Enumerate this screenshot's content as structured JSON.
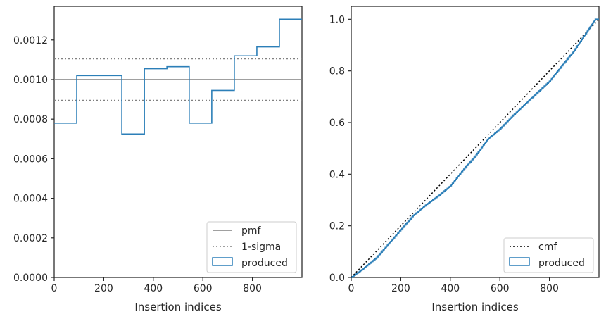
{
  "colors": {
    "produced": "#2c7fb8",
    "pmf": "#808080",
    "sigma": "#808080",
    "cmf": "#000000",
    "axis": "#262626"
  },
  "chart_data": [
    {
      "type": "line",
      "subtype": "step-histogram",
      "xlabel": "Insertion indices",
      "ylabel": "",
      "title": "",
      "xlim": [
        0,
        1000
      ],
      "ylim": [
        0,
        0.00137
      ],
      "xticks": [
        0,
        200,
        400,
        600,
        800
      ],
      "xtick_labels": [
        "0",
        "200",
        "400",
        "600",
        "800"
      ],
      "yticks": [
        0,
        0.0002,
        0.0004,
        0.0006,
        0.0008,
        0.001,
        0.0012
      ],
      "ytick_labels": [
        "0.0000",
        "0.0002",
        "0.0004",
        "0.0006",
        "0.0008",
        "0.0010",
        "0.0012"
      ],
      "grid": false,
      "legend_position": "bottom-right",
      "pmf": 0.001,
      "sigma_band": [
        0.000895,
        0.001105
      ],
      "bin_edges": [
        0,
        91,
        182,
        273,
        364,
        455,
        545,
        636,
        727,
        818,
        909,
        1000
      ],
      "produced": [
        0.00078,
        0.00102,
        0.00102,
        0.000725,
        0.001055,
        0.001065,
        0.00078,
        0.000945,
        0.00112,
        0.001165,
        0.001305
      ],
      "legend": [
        "pmf",
        "1-sigma",
        "produced"
      ]
    },
    {
      "type": "line",
      "xlabel": "Insertion indices",
      "ylabel": "",
      "title": "",
      "xlim": [
        0,
        1000
      ],
      "ylim": [
        0,
        1.05
      ],
      "xticks": [
        0,
        200,
        400,
        600,
        800
      ],
      "xtick_labels": [
        "0",
        "200",
        "400",
        "600",
        "800"
      ],
      "yticks": [
        0,
        0.2,
        0.4,
        0.6,
        0.8,
        1.0
      ],
      "ytick_labels": [
        "0.0",
        "0.2",
        "0.4",
        "0.6",
        "0.8",
        "1.0"
      ],
      "grid": false,
      "legend_position": "bottom-right",
      "cmf": {
        "x": [
          0,
          1000
        ],
        "y": [
          0,
          1.0
        ]
      },
      "produced": {
        "x": [
          0,
          50,
          100,
          150,
          200,
          250,
          300,
          350,
          400,
          450,
          500,
          550,
          600,
          650,
          700,
          750,
          800,
          850,
          900,
          950,
          985,
          1000
        ],
        "y": [
          0,
          0.035,
          0.075,
          0.13,
          0.185,
          0.24,
          0.28,
          0.315,
          0.355,
          0.415,
          0.47,
          0.535,
          0.575,
          0.625,
          0.67,
          0.715,
          0.76,
          0.82,
          0.88,
          0.95,
          1.0,
          1.0
        ]
      },
      "legend": [
        "cmf",
        "produced"
      ]
    }
  ]
}
